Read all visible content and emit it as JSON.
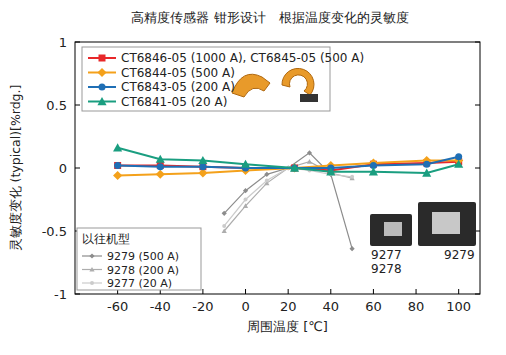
{
  "chart_data": {
    "type": "line",
    "title": "高精度传感器 钳形设计　根据温度变化的灵敏度",
    "x_label": "周围温度 [℃]",
    "y_label": "灵敏度变化 (typical)[%rdg.]",
    "xlim": [
      -80,
      110
    ],
    "ylim": [
      -1,
      1
    ],
    "xticks": [
      -60,
      -40,
      -20,
      0,
      20,
      40,
      60,
      80,
      100
    ],
    "yticks": [
      -1,
      -0.5,
      0,
      0.5,
      1
    ],
    "grid": false,
    "legend": "upper left",
    "annotations": [
      "以往机型",
      "9277",
      "9278",
      "9279"
    ],
    "series": [
      {
        "name": "CT6846-05 (1000 A), CT6845-05 (500 A)",
        "color": "#e8282a",
        "marker": "square",
        "line_style": "solid",
        "x": [
          -60,
          -40,
          -20,
          0,
          23,
          40,
          60,
          85,
          100
        ],
        "values": [
          0.02,
          0.02,
          0.01,
          0.0,
          0.0,
          -0.02,
          0.03,
          0.04,
          0.05
        ]
      },
      {
        "name": "CT6844-05 (500 A)",
        "color": "#f4a11b",
        "marker": "diamond",
        "line_style": "solid",
        "x": [
          -60,
          -40,
          -20,
          0,
          23,
          40,
          60,
          85,
          100
        ],
        "values": [
          -0.06,
          -0.05,
          -0.04,
          -0.02,
          0.0,
          0.02,
          0.04,
          0.06,
          0.06
        ]
      },
      {
        "name": "CT6843-05 (200 A)",
        "color": "#1f6fb5",
        "marker": "circle",
        "line_style": "solid",
        "x": [
          -60,
          -40,
          -20,
          0,
          23,
          40,
          60,
          85,
          100
        ],
        "values": [
          0.02,
          0.01,
          0.01,
          0.0,
          0.0,
          0.0,
          0.02,
          0.03,
          0.09
        ]
      },
      {
        "name": "CT6841-05 (20 A)",
        "color": "#1a9e80",
        "marker": "triangle",
        "line_style": "solid",
        "x": [
          -60,
          -40,
          -20,
          0,
          23,
          40,
          60,
          85,
          100
        ],
        "values": [
          0.16,
          0.07,
          0.06,
          0.03,
          0.0,
          -0.03,
          -0.03,
          -0.04,
          0.03
        ]
      },
      {
        "name": "9279 (500 A)",
        "color": "#8c8c8c",
        "marker": "diamond",
        "line_style": "solid",
        "x": [
          -10,
          0,
          10,
          20,
          30,
          40,
          50
        ],
        "values": [
          -0.36,
          -0.18,
          -0.05,
          0.0,
          0.12,
          -0.05,
          -0.64
        ]
      },
      {
        "name": "9278 (200 A)",
        "color": "#adadad",
        "marker": "triangle",
        "line_style": "solid",
        "x": [
          -10,
          0,
          10,
          20,
          30,
          40,
          50
        ],
        "values": [
          -0.5,
          -0.3,
          -0.12,
          0.0,
          0.05,
          -0.04,
          -0.08
        ]
      },
      {
        "name": "9277 (20 A)",
        "color": "#cbcbcb",
        "marker": "circle",
        "line_style": "solid",
        "x": [
          -10,
          0,
          10,
          20,
          30,
          40,
          50
        ],
        "values": [
          -0.46,
          -0.25,
          -0.1,
          0.0,
          -0.02,
          -0.05,
          -0.07
        ]
      }
    ]
  }
}
